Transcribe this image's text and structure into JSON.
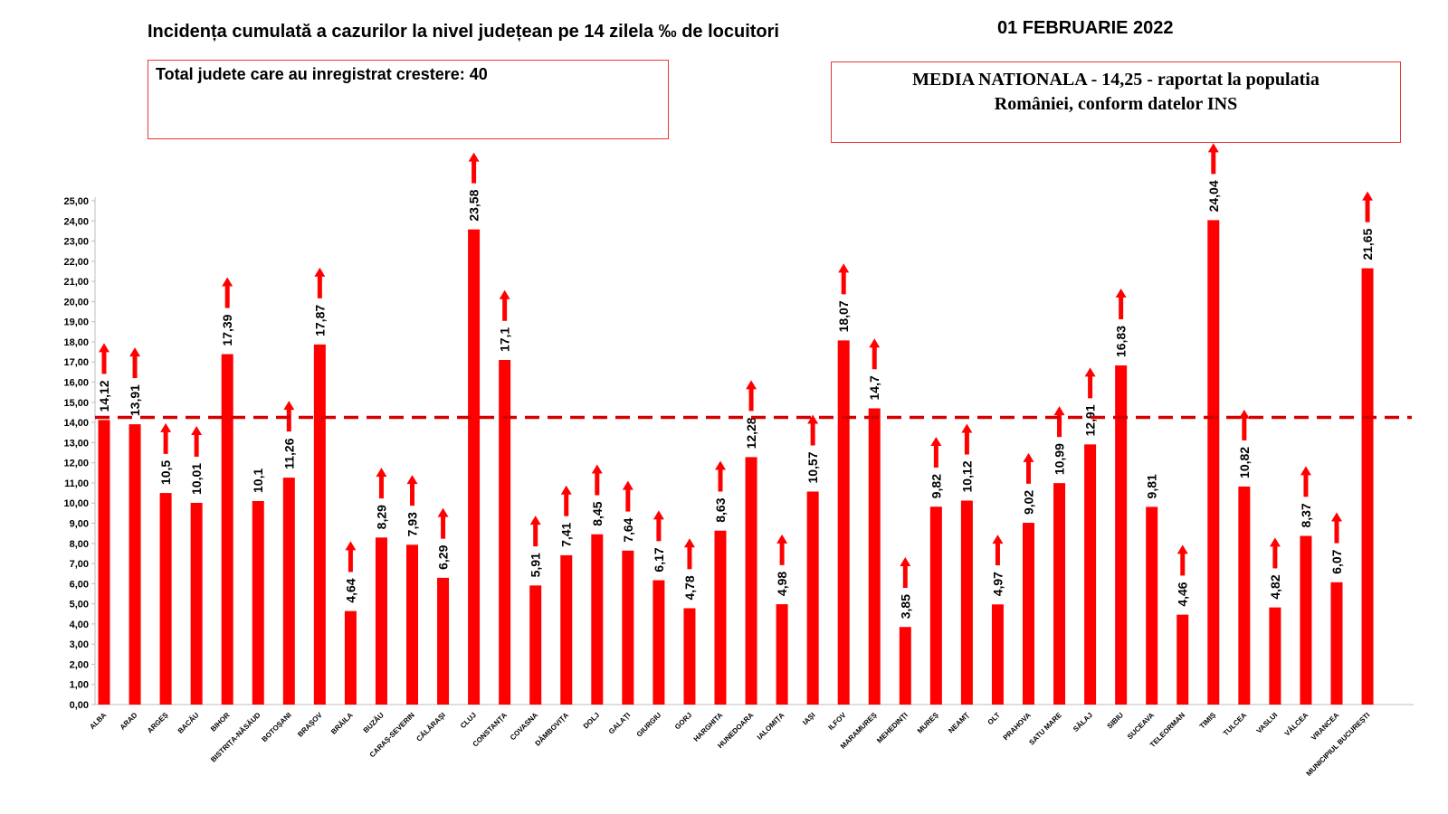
{
  "chart_data": {
    "type": "bar",
    "title": "Incidența cumulată a cazurilor la nivel județean pe 14 zilela ‰ de locuitori",
    "date": "01 FEBRUARIE 2022",
    "note_left": "Total judete care au inregistrat crestere: 40",
    "note_right_line1": "MEDIA NATIONALA - 14,25 -  raportat la populatia",
    "note_right_line2": "României, conform datelor INS",
    "reference_line": 14.25,
    "ylim": [
      0,
      25
    ],
    "ytick_labels": [
      "0,00",
      "1,00",
      "2,00",
      "3,00",
      "4,00",
      "5,00",
      "6,00",
      "7,00",
      "8,00",
      "9,00",
      "10,00",
      "11,00",
      "12,00",
      "13,00",
      "14,00",
      "15,00",
      "16,00",
      "17,00",
      "18,00",
      "19,00",
      "20,00",
      "21,00",
      "22,00",
      "23,00",
      "24,00",
      "25,00"
    ],
    "bar_color": "#ff0000",
    "arrow_color": "#ff0000",
    "categories": [
      "ALBA",
      "ARAD",
      "ARGEȘ",
      "BACĂU",
      "BIHOR",
      "BISTRIȚA-NĂSĂUD",
      "BOTOȘANI",
      "BRAȘOV",
      "BRĂILA",
      "BUZĂU",
      "CARAȘ-SEVERIN",
      "CĂLĂRAȘI",
      "CLUJ",
      "CONSTANȚA",
      "COVASNA",
      "DÂMBOVIȚA",
      "DOLJ",
      "GALAȚI",
      "GIURGIU",
      "GORJ",
      "HARGHITA",
      "HUNEDOARA",
      "IALOMIȚA",
      "IAȘI",
      "ILFOV",
      "MARAMUREȘ",
      "MEHEDINȚI",
      "MUREȘ",
      "NEAMȚ",
      "OLT",
      "PRAHOVA",
      "SATU MARE",
      "SĂLAJ",
      "SIBIU",
      "SUCEAVA",
      "TELEORMAN",
      "TIMIȘ",
      "TULCEA",
      "VASLUI",
      "VÂLCEA",
      "VRANCEA",
      "MUNICIPIUL BUCUREȘTI"
    ],
    "values": [
      14.12,
      13.91,
      10.5,
      10.01,
      17.39,
      10.1,
      11.26,
      17.87,
      4.64,
      8.29,
      7.93,
      6.29,
      23.58,
      17.1,
      5.91,
      7.41,
      8.45,
      7.64,
      6.17,
      4.78,
      8.63,
      12.28,
      4.98,
      10.57,
      18.07,
      14.7,
      3.85,
      9.82,
      10.12,
      4.97,
      9.02,
      10.99,
      12.91,
      16.83,
      9.81,
      4.46,
      24.04,
      10.82,
      4.82,
      8.37,
      6.07,
      21.65
    ],
    "value_labels": [
      "14,12",
      "13,91",
      "10,5",
      "10,01",
      "17,39",
      "10,1",
      "11,26",
      "17,87",
      "4,64",
      "8,29",
      "7,93",
      "6,29",
      "23,58",
      "17,1",
      "5,91",
      "7,41",
      "8,45",
      "7,64",
      "6,17",
      "4,78",
      "8,63",
      "12,28",
      "4,98",
      "10,57",
      "18,07",
      "14,7",
      "3,85",
      "9,82",
      "10,12",
      "4,97",
      "9,02",
      "10,99",
      "12,91",
      "16,83",
      "9,81",
      "4,46",
      "24,04",
      "10,82",
      "4,82",
      "8,37",
      "6,07",
      "21,65"
    ],
    "increase_arrow": [
      true,
      true,
      true,
      true,
      true,
      false,
      true,
      true,
      true,
      true,
      true,
      true,
      true,
      true,
      true,
      true,
      true,
      true,
      true,
      true,
      true,
      true,
      true,
      true,
      true,
      true,
      true,
      true,
      true,
      true,
      true,
      true,
      true,
      true,
      false,
      true,
      true,
      true,
      true,
      true,
      true,
      true
    ]
  }
}
